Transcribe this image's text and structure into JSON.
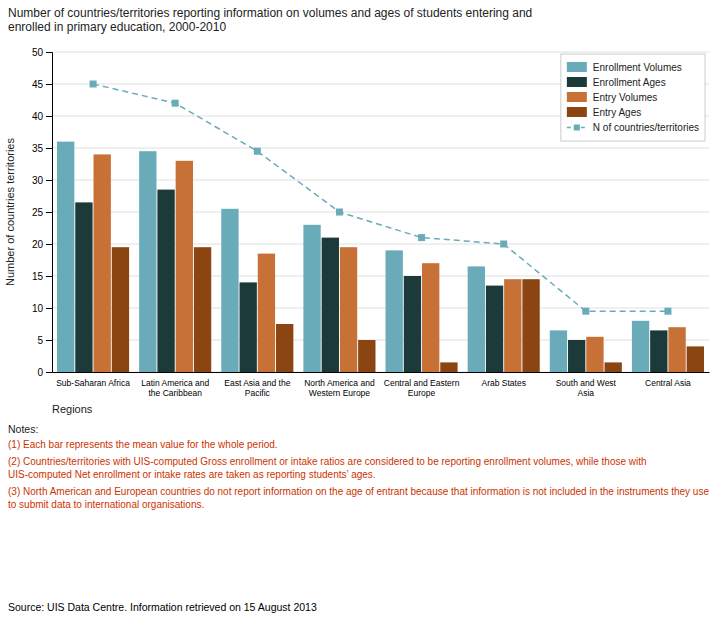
{
  "chart_data": {
    "type": "bar",
    "title": "Number of countries/territories reporting information on volumes and ages of students entering and\nenrolled in primary education, 2000-2010",
    "xlabel": "Regions",
    "ylabel": "Number of countries territories",
    "categories": [
      "Sub-Saharan Africa",
      "Latin America and\nthe Caribbean",
      "East Asia and the\nPacific",
      "North America and\nWestern Europe",
      "Central and Eastern\nEurope",
      "Arab States",
      "South and West\nAsia",
      "Central Asia"
    ],
    "series": [
      {
        "name": "Enrollment Volumes",
        "color": "#6AABBA",
        "values": [
          36.0,
          34.5,
          25.5,
          23.0,
          19.0,
          16.5,
          6.5,
          8.0
        ]
      },
      {
        "name": "Enrollment Ages",
        "color": "#1C3A3A",
        "values": [
          26.5,
          28.5,
          14.0,
          21.0,
          15.0,
          13.5,
          5.0,
          6.5
        ]
      },
      {
        "name": "Entry Volumes",
        "color": "#C87137",
        "values": [
          34.0,
          33.0,
          18.5,
          19.5,
          17.0,
          14.5,
          5.5,
          7.0
        ]
      },
      {
        "name": "Entry Ages",
        "color": "#8B4513",
        "values": [
          19.5,
          19.5,
          7.5,
          5.0,
          1.5,
          14.5,
          1.5,
          4.0
        ]
      },
      {
        "name": "N of countries/territories",
        "type": "line",
        "color": "#6AABBA",
        "marker": "square",
        "line_style": "dashed",
        "values": [
          45.0,
          42.0,
          34.5,
          25.0,
          21.0,
          20.0,
          9.5,
          9.5
        ]
      }
    ],
    "ylim": [
      0,
      50
    ],
    "yticks": [
      0,
      5,
      10,
      15,
      20,
      25,
      30,
      35,
      40,
      45,
      50
    ],
    "grid": true,
    "legend": "upper right",
    "notes_title": "Notes:",
    "notes": [
      {
        "text": "(1)  Each bar represents the mean value for the whole period.",
        "color": "#CC3300"
      },
      {
        "text": "(2)  Countries/territories with UIS-computed Gross enrollment or intake ratios are considered to be reporting enrollment volumes, while those with UIS-computed Net enrollment or intake rates are taken as reporting students’ ages.",
        "color": "#CC3300"
      },
      {
        "text": "(3)  North American and European countries do not report information on the age of entrant because that information is not included in the instruments they use to submit data to international organisations.",
        "color": "#CC3300"
      }
    ],
    "source": "Source: UIS Data Centre. Information retrieved on 15 August 2013"
  }
}
